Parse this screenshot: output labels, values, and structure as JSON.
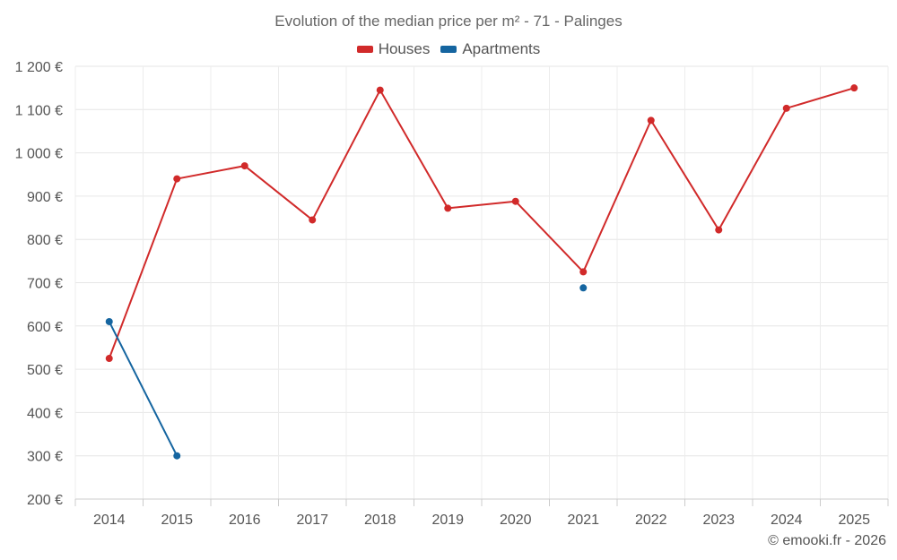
{
  "chart_data": {
    "type": "line",
    "title": "Evolution of the median price per m² - 71 - Palinges",
    "categories": [
      "2014",
      "2015",
      "2016",
      "2017",
      "2018",
      "2019",
      "2020",
      "2021",
      "2022",
      "2023",
      "2024",
      "2025"
    ],
    "series": [
      {
        "name": "Houses",
        "color": "#d12a2a",
        "values": [
          525,
          940,
          970,
          845,
          1145,
          872,
          888,
          725,
          1075,
          822,
          1103,
          1150
        ]
      },
      {
        "name": "Apartments",
        "color": "#1565a0",
        "values": [
          610,
          300,
          null,
          null,
          null,
          null,
          null,
          688,
          null,
          null,
          null,
          null
        ]
      }
    ],
    "ylim": [
      200,
      1200
    ],
    "yticks": [
      200,
      300,
      400,
      500,
      600,
      700,
      800,
      900,
      1000,
      1100,
      1200
    ],
    "ytick_labels": [
      "200 €",
      "300 €",
      "400 €",
      "500 €",
      "600 €",
      "700 €",
      "800 €",
      "900 €",
      "1 000 €",
      "1 100 €",
      "1 200 €"
    ],
    "grid": true,
    "legend_position": "top-center"
  },
  "footer": {
    "copyright": "© emooki.fr - 2026"
  }
}
